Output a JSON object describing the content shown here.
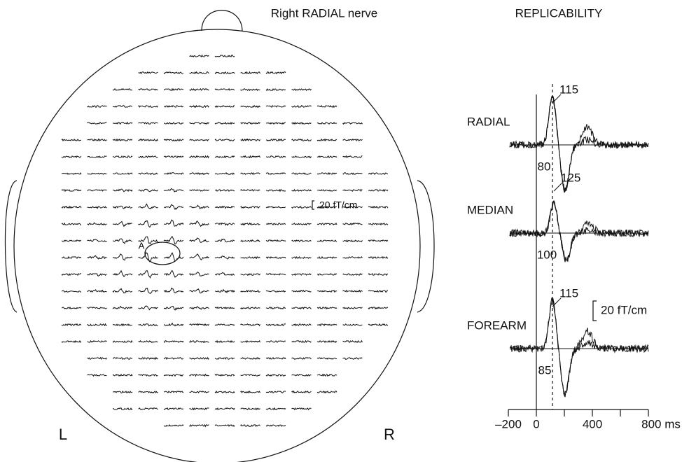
{
  "head": {
    "title": "Right RADIAL nerve",
    "scale_label": "20 fT/cm",
    "channel_label": "A",
    "left_label": "L",
    "right_label": "R"
  },
  "replicability": {
    "title": "REPLICABILITY",
    "xlim": [
      -200,
      800
    ],
    "xticks": [
      {
        "value": -200,
        "label": "–200"
      },
      0,
      400,
      {
        "value": 800,
        "label": "800 ms"
      }
    ],
    "minor_xticks": [
      200,
      600
    ],
    "scale_label": "20 fT/cm",
    "conditions": [
      {
        "name": "RADIAL",
        "peak_latency": 115,
        "onset_latency": 80
      },
      {
        "name": "MEDIAN",
        "peak_latency": 125,
        "onset_latency": 100
      },
      {
        "name": "FOREARM",
        "peak_latency": 115,
        "onset_latency": 85
      }
    ]
  }
}
